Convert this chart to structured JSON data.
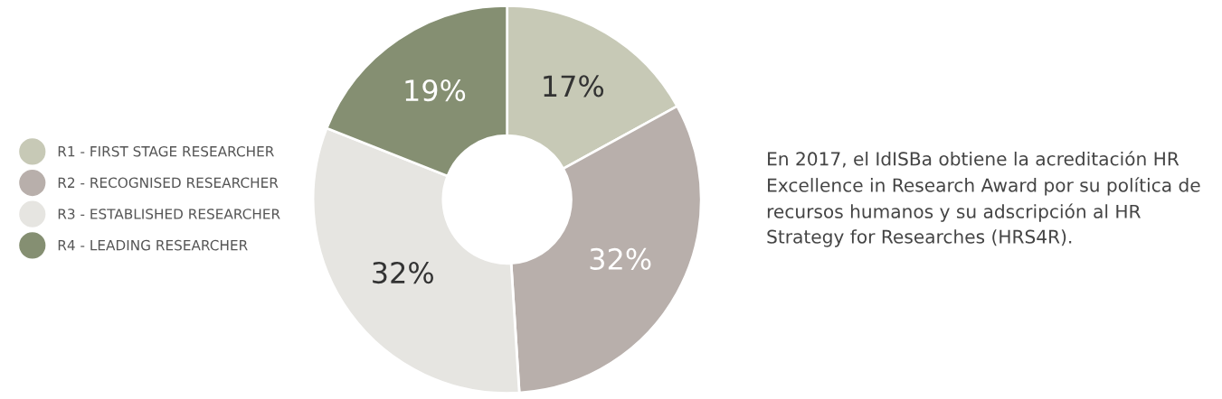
{
  "chart_data": {
    "type": "donut",
    "categories": [
      "R1 - FIRST STAGE RESEARCHER",
      "R2 - RECOGNISED RESEARCHER",
      "R3 - ESTABLISHED RESEARCHER",
      "R4 - LEADING RESEARCHER"
    ],
    "values": [
      17,
      32,
      32,
      19
    ],
    "colors": [
      "#c7c9b6",
      "#b8afab",
      "#e6e5e1",
      "#858f72"
    ],
    "value_labels": [
      "17%",
      "32%",
      "32%",
      "19%"
    ],
    "legend": "left",
    "annotations": [
      "En 2017, el IdISBa obtiene la acreditación HR Excellence in Research Award por su política de recursos humanos y su adscripción al HR Strategy for Researches (HRS4R)."
    ]
  }
}
